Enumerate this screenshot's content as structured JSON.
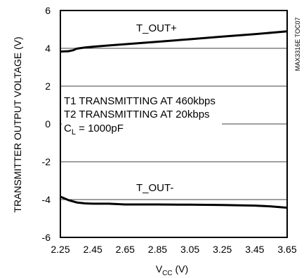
{
  "chart_data": {
    "type": "line",
    "xlabel": "V",
    "xlabel_sub": "CC",
    "xlabel_unit": " (V)",
    "ylabel": "TRANSMITTER OUTPUT VOLTAGE (V)",
    "side_code": "MAX3316E TOC07",
    "xlim": [
      2.25,
      3.65
    ],
    "ylim": [
      -6,
      6
    ],
    "x_ticks": [
      "2.25",
      "2.45",
      "2.65",
      "2.85",
      "3.05",
      "3.25",
      "3.45",
      "3.65"
    ],
    "y_ticks": [
      "6",
      "4",
      "2",
      "0",
      "-2",
      "-4",
      "-6"
    ],
    "grid": true,
    "notes": {
      "line1": "T1 TRANSMITTING AT 460kbps",
      "line2": "T2 TRANSMITTING AT 20kbps",
      "line3_prefix": "C",
      "line3_sub": "L",
      "line3_suffix": " = 1000pF"
    },
    "series": [
      {
        "name": "T_OUT+",
        "x": [
          2.25,
          2.3,
          2.33,
          2.35,
          2.4,
          2.45,
          2.55,
          2.65,
          2.85,
          3.05,
          3.25,
          3.45,
          3.65
        ],
        "y": [
          3.83,
          3.85,
          3.9,
          3.98,
          4.04,
          4.08,
          4.15,
          4.22,
          4.35,
          4.48,
          4.62,
          4.75,
          4.9
        ]
      },
      {
        "name": "T_OUT-",
        "x": [
          2.25,
          2.3,
          2.35,
          2.4,
          2.45,
          2.55,
          2.65,
          2.85,
          3.05,
          3.25,
          3.45,
          3.55,
          3.65
        ],
        "y": [
          -3.85,
          -4.03,
          -4.15,
          -4.2,
          -4.22,
          -4.22,
          -4.26,
          -4.26,
          -4.27,
          -4.29,
          -4.32,
          -4.36,
          -4.43
        ]
      }
    ]
  }
}
